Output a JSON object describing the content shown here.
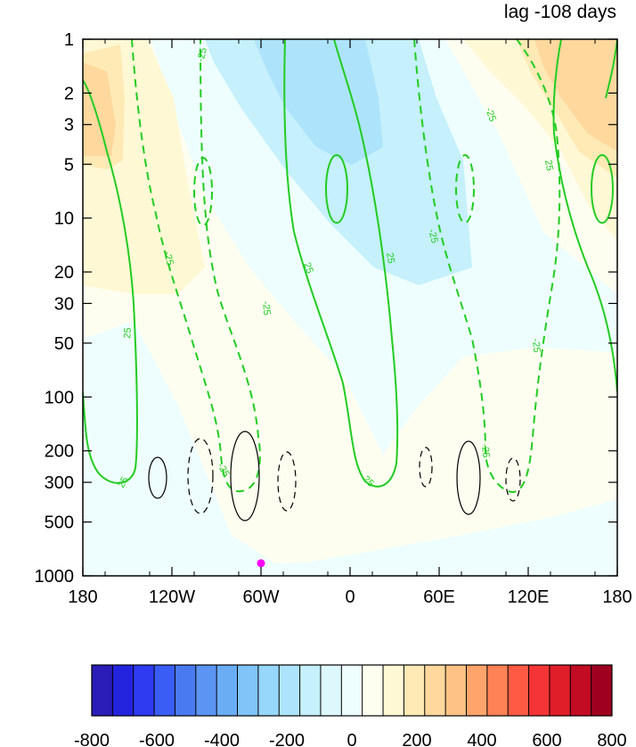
{
  "chart_data": {
    "type": "heatmap",
    "title": "lag -108 days",
    "x_ticks": [
      "180",
      "120W",
      "60W",
      "0",
      "60E",
      "120E",
      "180"
    ],
    "x_range": [
      -180,
      180
    ],
    "y_ticks": [
      "1",
      "2",
      "3",
      "5",
      "10",
      "20",
      "30",
      "50",
      "100",
      "200",
      "300",
      "500",
      "1000"
    ],
    "y_range": [
      1,
      1000
    ],
    "y_scale": "log",
    "y_reversed": true,
    "colorbar": {
      "tick_labels": [
        "-800",
        "-600",
        "-400",
        "-200",
        "0",
        "200",
        "400",
        "600",
        "800"
      ],
      "range": [
        -800,
        800
      ],
      "colors": [
        "#2a1db8",
        "#2424de",
        "#2e3bf0",
        "#3a5ef5",
        "#4a7af2",
        "#5b94f2",
        "#6badf5",
        "#80c4f8",
        "#96d7fb",
        "#aee4fb",
        "#c5f0fc",
        "#ddf8fc",
        "#eefefe",
        "#fefef0",
        "#fff8d5",
        "#ffeab5",
        "#ffd89e",
        "#ffc285",
        "#ffa56c",
        "#ff8156",
        "#fe5a44",
        "#f53535",
        "#e01e2a",
        "#c20c24",
        "#a00020"
      ]
    },
    "contour_labels": [
      "-25",
      "25"
    ],
    "marker": {
      "x": -60,
      "y": 850,
      "color": "#ff00ff"
    }
  }
}
